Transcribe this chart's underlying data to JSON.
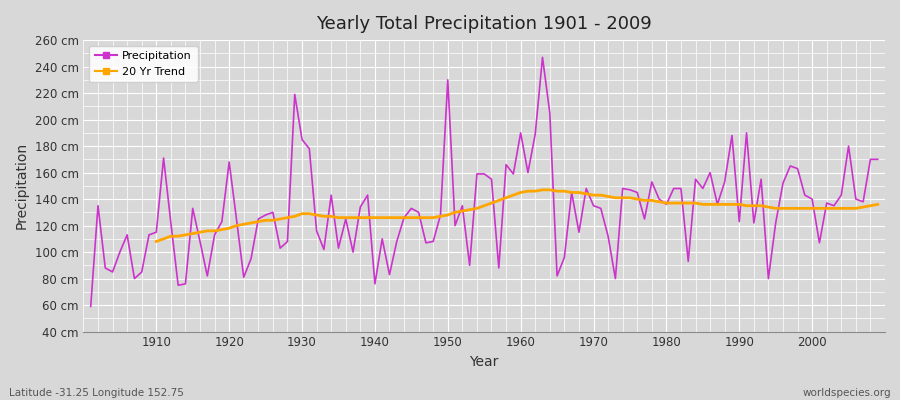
{
  "title": "Yearly Total Precipitation 1901 - 2009",
  "xlabel": "Year",
  "ylabel": "Precipitation",
  "subtitle": "Latitude -31.25 Longitude 152.75",
  "watermark": "worldspecies.org",
  "precip_color": "#CC33CC",
  "trend_color": "#FFA500",
  "fig_bg_color": "#D8D8D8",
  "plot_bg_color": "#D8D8D8",
  "grid_color": "#FFFFFF",
  "ylim": [
    40,
    260
  ],
  "xlim": [
    1900,
    2010
  ],
  "yticks": [
    40,
    60,
    80,
    100,
    120,
    140,
    160,
    180,
    200,
    220,
    240,
    260
  ],
  "xticks": [
    1910,
    1920,
    1930,
    1940,
    1950,
    1960,
    1970,
    1980,
    1990,
    2000
  ],
  "years": [
    1901,
    1902,
    1903,
    1904,
    1905,
    1906,
    1907,
    1908,
    1909,
    1910,
    1911,
    1912,
    1913,
    1914,
    1915,
    1916,
    1917,
    1918,
    1919,
    1920,
    1921,
    1922,
    1923,
    1924,
    1925,
    1926,
    1927,
    1928,
    1929,
    1930,
    1931,
    1932,
    1933,
    1934,
    1935,
    1936,
    1937,
    1938,
    1939,
    1940,
    1941,
    1942,
    1943,
    1944,
    1945,
    1946,
    1947,
    1948,
    1949,
    1950,
    1951,
    1952,
    1953,
    1954,
    1955,
    1956,
    1957,
    1958,
    1959,
    1960,
    1961,
    1962,
    1963,
    1964,
    1965,
    1966,
    1967,
    1968,
    1969,
    1970,
    1971,
    1972,
    1973,
    1974,
    1975,
    1976,
    1977,
    1978,
    1979,
    1980,
    1981,
    1982,
    1983,
    1984,
    1985,
    1986,
    1987,
    1988,
    1989,
    1990,
    1991,
    1992,
    1993,
    1994,
    1995,
    1996,
    1997,
    1998,
    1999,
    2000,
    2001,
    2002,
    2003,
    2004,
    2005,
    2006,
    2007,
    2008,
    2009
  ],
  "precip": [
    59,
    135,
    88,
    85,
    100,
    113,
    80,
    85,
    113,
    115,
    171,
    122,
    75,
    76,
    133,
    108,
    82,
    113,
    123,
    168,
    125,
    81,
    95,
    125,
    128,
    130,
    103,
    108,
    219,
    185,
    178,
    116,
    102,
    143,
    103,
    125,
    100,
    134,
    143,
    76,
    110,
    83,
    108,
    126,
    133,
    130,
    107,
    108,
    128,
    230,
    120,
    135,
    90,
    159,
    159,
    155,
    88,
    166,
    159,
    190,
    160,
    189,
    247,
    205,
    82,
    96,
    145,
    115,
    148,
    135,
    133,
    112,
    80,
    148,
    147,
    145,
    125,
    153,
    140,
    136,
    148,
    148,
    93,
    155,
    148,
    160,
    136,
    153,
    188,
    123,
    190,
    122,
    155,
    80,
    122,
    152,
    165,
    163,
    143,
    140,
    107,
    137,
    135,
    143,
    180,
    140,
    138,
    170,
    170
  ],
  "trend": [
    null,
    null,
    null,
    null,
    null,
    null,
    null,
    null,
    null,
    108,
    110,
    112,
    112,
    113,
    114,
    115,
    116,
    116,
    117,
    118,
    120,
    121,
    122,
    123,
    124,
    124,
    125,
    126,
    127,
    129,
    129,
    128,
    127,
    127,
    126,
    126,
    126,
    126,
    126,
    126,
    126,
    126,
    126,
    126,
    126,
    126,
    126,
    126,
    127,
    128,
    130,
    131,
    132,
    133,
    135,
    137,
    139,
    141,
    143,
    145,
    146,
    146,
    147,
    147,
    146,
    146,
    145,
    145,
    144,
    143,
    143,
    142,
    141,
    141,
    141,
    140,
    139,
    139,
    138,
    137,
    137,
    137,
    137,
    137,
    136,
    136,
    136,
    136,
    136,
    136,
    135,
    135,
    135,
    134,
    133,
    133,
    133,
    133,
    133,
    133,
    133,
    133,
    133,
    133,
    133,
    133,
    134,
    135,
    136
  ]
}
